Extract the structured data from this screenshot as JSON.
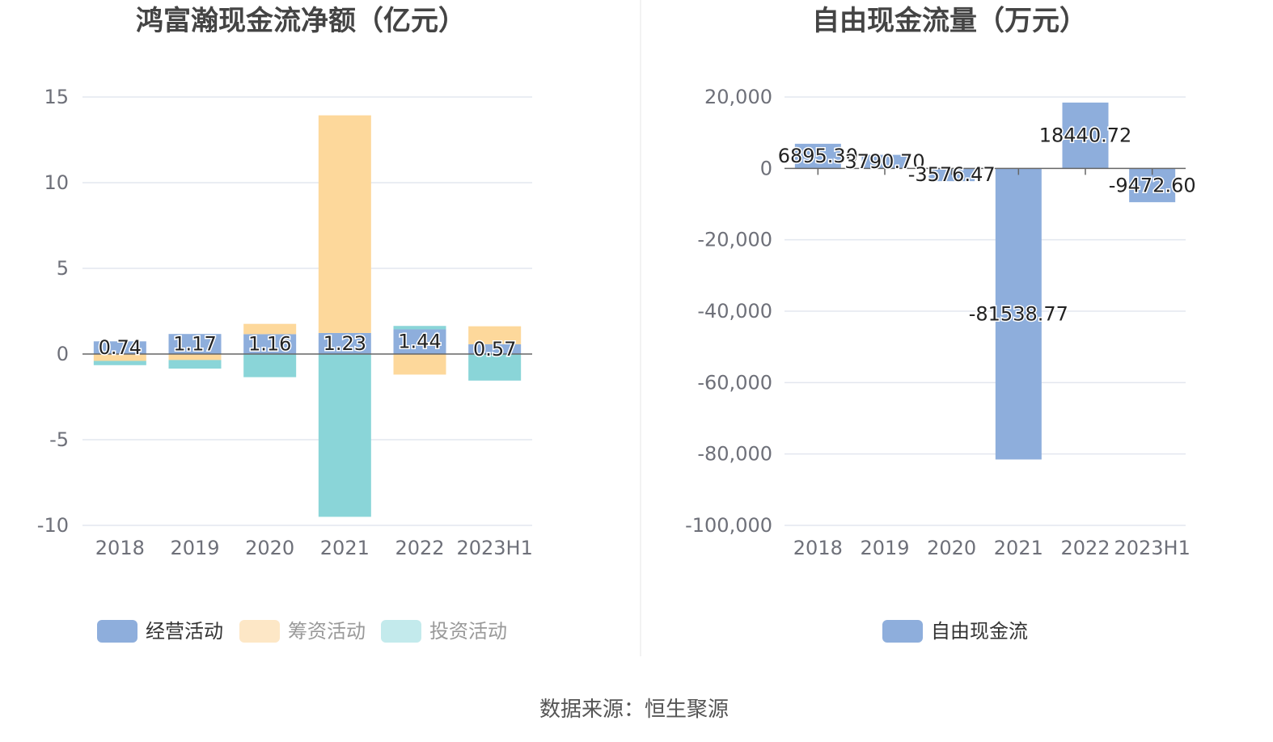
{
  "colors": {
    "operating": "#8eaedc",
    "financing": "#fdd89b",
    "investing": "#8ad5d8",
    "free_cash_flow": "#8eaedc",
    "legend_financing_muted": "#fde7c6",
    "legend_investing_muted": "#c3eaec",
    "grid": "#e3e7ef",
    "axis": "#666666",
    "divider": "#e6e6e6"
  },
  "chart_data": [
    {
      "type": "bar",
      "stacked": true,
      "title": "鸿富瀚现金流净额（亿元）",
      "categories": [
        "2018",
        "2019",
        "2020",
        "2021",
        "2022",
        "2023H1"
      ],
      "ylim": [
        -10,
        15
      ],
      "yticks": [
        "15",
        "10",
        "5",
        "0",
        "-5",
        "-10"
      ],
      "ytick_values": [
        15,
        10,
        5,
        0,
        -5,
        -10
      ],
      "series": [
        {
          "name": "经营活动",
          "key": "operating",
          "values": [
            0.74,
            1.17,
            1.16,
            1.23,
            1.44,
            0.57
          ]
        },
        {
          "name": "筹资活动",
          "key": "financing",
          "values": [
            -0.4,
            -0.35,
            0.6,
            12.7,
            -1.2,
            1.05
          ]
        },
        {
          "name": "投资活动",
          "key": "investing",
          "values": [
            -0.25,
            -0.5,
            -1.35,
            -9.5,
            0.2,
            -1.55
          ]
        }
      ],
      "data_labels": [
        "0.74",
        "1.17",
        "1.16",
        "1.23",
        "1.44",
        "0.57"
      ],
      "legend": [
        {
          "label": "经营活动",
          "key": "operating",
          "active": true
        },
        {
          "label": "筹资活动",
          "key": "legend_financing_muted",
          "active": false
        },
        {
          "label": "投资活动",
          "key": "legend_investing_muted",
          "active": false
        }
      ],
      "legend_position": "bottom-center"
    },
    {
      "type": "bar",
      "title": "自由现金流量（万元）",
      "categories": [
        "2018",
        "2019",
        "2020",
        "2021",
        "2022",
        "2023H1"
      ],
      "ylim": [
        -100000,
        20000
      ],
      "yticks": [
        "20,000",
        "0",
        "-20,000",
        "-40,000",
        "-60,000",
        "-80,000",
        "-100,000"
      ],
      "ytick_values": [
        20000,
        0,
        -20000,
        -40000,
        -60000,
        -80000,
        -100000
      ],
      "series": [
        {
          "name": "自由现金流",
          "key": "free_cash_flow",
          "values": [
            6895.3,
            3790.7,
            -3576.47,
            -81538.77,
            18440.72,
            -9472.6
          ]
        }
      ],
      "data_labels": [
        "6895.30",
        "3790.70",
        "-3576.47",
        "-81538.77",
        "18440.72",
        "-9472.60"
      ],
      "legend": [
        {
          "label": "自由现金流",
          "key": "free_cash_flow",
          "active": true
        }
      ],
      "legend_position": "bottom-center"
    }
  ],
  "source": "数据来源：恒生聚源"
}
